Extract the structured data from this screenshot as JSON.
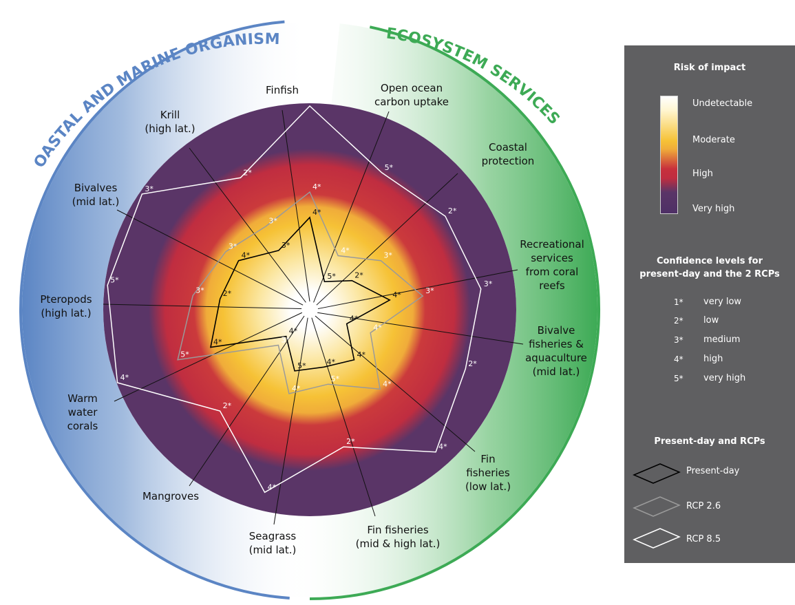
{
  "arc_titles": {
    "left": "COASTAL AND MARINE ORGANISMS",
    "right": "ECOSYSTEM SERVICES"
  },
  "colors": {
    "organisms_arc": "#5b85c4",
    "services_arc": "#3daa55",
    "very_high": "#5a3567",
    "high": "#c02d40",
    "moderate": "#f6c236",
    "undetectable": "#ffffff",
    "present_day_line": "#000000",
    "rcp26_line": "#9a9a9a",
    "rcp85_line": "#ffffff"
  },
  "chart_data": {
    "type": "radar",
    "axes": [
      {
        "label": [
          "Finfish"
        ],
        "group": "organisms"
      },
      {
        "label": [
          "Open ocean",
          "carbon uptake"
        ],
        "group": "services"
      },
      {
        "label": [
          "Coastal",
          "protection"
        ],
        "group": "services"
      },
      {
        "label": [
          "Recreational",
          "services",
          "from coral",
          "reefs"
        ],
        "group": "services"
      },
      {
        "label": [
          "Bivalve",
          "fisheries &",
          "aquaculture",
          "(mid lat.)"
        ],
        "group": "services"
      },
      {
        "label": [
          "Fin",
          "fisheries",
          "(low lat.)"
        ],
        "group": "services"
      },
      {
        "label": [
          "Fin fisheries",
          "(mid & high lat.)"
        ],
        "group": "services"
      },
      {
        "label": [
          "Seagrass",
          "(mid lat.)"
        ],
        "group": "organisms"
      },
      {
        "label": [
          "Mangroves"
        ],
        "group": "organisms"
      },
      {
        "label": [
          "Warm",
          "water",
          "corals"
        ],
        "group": "organisms"
      },
      {
        "label": [
          "Pteropods",
          "(high lat.)"
        ],
        "group": "organisms"
      },
      {
        "label": [
          "Bivalves",
          "(mid lat.)"
        ],
        "group": "organisms"
      },
      {
        "label": [
          "Krill",
          "(high lat.)"
        ],
        "group": "organisms"
      }
    ],
    "risk_scale": [
      "Undetectable",
      "Moderate",
      "High",
      "Very high"
    ],
    "series": [
      {
        "name": "Present-day",
        "values": [
          0.43,
          0.12,
          0.22,
          0.37,
          0.16,
          0.3,
          0.26,
          0.28,
          0.14,
          0.5,
          0.42,
          0.4,
          0.3
        ],
        "confidence": [
          "4*",
          "5*",
          "2*",
          "4*",
          "4*",
          "4*",
          "4*",
          "5*",
          "4*",
          "4*",
          "2*",
          "4*",
          "3*"
        ]
      },
      {
        "name": "RCP 2.6",
        "values": [
          0.56,
          0.27,
          0.4,
          0.54,
          0.29,
          0.5,
          0.35,
          0.4,
          0.2,
          0.68,
          0.56,
          0.48,
          0.44
        ],
        "confidence": [
          "4*",
          "4*",
          "3*",
          "3*",
          "4*",
          "4*",
          "5*",
          "4*",
          "3*",
          "5*",
          "3*",
          "3*",
          "3*"
        ]
      },
      {
        "name": "RCP 8.5",
        "values": [
          1.0,
          0.75,
          0.8,
          0.84,
          0.81,
          0.93,
          0.68,
          0.92,
          0.65,
          1.01,
          1.0,
          1.0,
          0.72
        ],
        "confidence": [
          "3*",
          "5*",
          "2*",
          "3*",
          "2*",
          "4*",
          "2*",
          "4*",
          "2*",
          "4*",
          "5*",
          "3*",
          "2*"
        ]
      }
    ]
  },
  "legend": {
    "risk_title": "Risk of impact",
    "risk_levels": [
      "Undetectable",
      "Moderate",
      "High",
      "Very high"
    ],
    "confidence_title": [
      "Confidence levels for",
      "present-day and the 2 RCPs"
    ],
    "confidence_levels": [
      {
        "key": "1*",
        "label": "very low"
      },
      {
        "key": "2*",
        "label": "low"
      },
      {
        "key": "3*",
        "label": "medium"
      },
      {
        "key": "4*",
        "label": "high"
      },
      {
        "key": "5*",
        "label": "very high"
      }
    ],
    "scenario_title": "Present-day and RCPs",
    "scenarios": [
      "Present-day",
      "RCP 2.6",
      "RCP 8.5"
    ]
  }
}
